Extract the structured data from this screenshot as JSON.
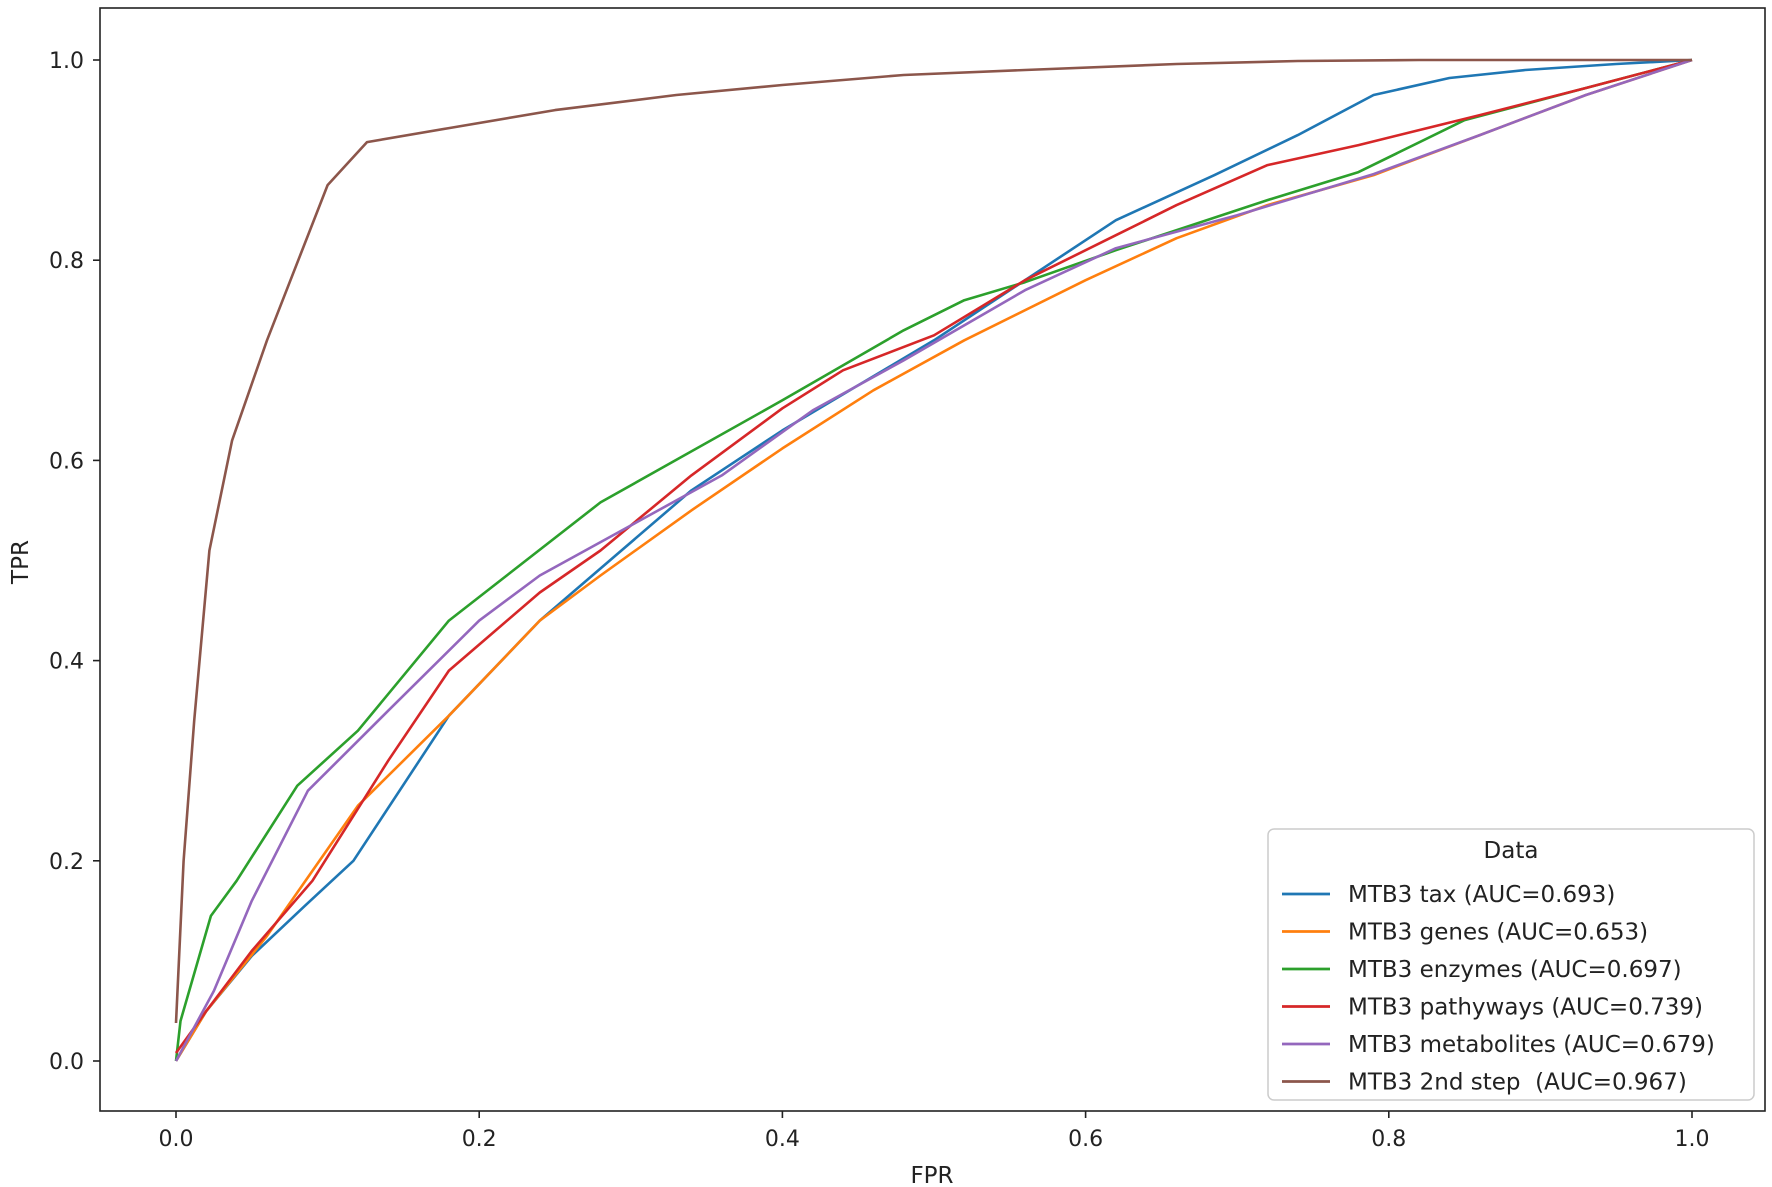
{
  "chart_data": {
    "type": "line",
    "xlabel": "FPR",
    "ylabel": "TPR",
    "xlim": [
      -0.05,
      1.05
    ],
    "ylim": [
      -0.05,
      1.05
    ],
    "xticks": [
      "0.0",
      "0.2",
      "0.4",
      "0.6",
      "0.8",
      "1.0"
    ],
    "yticks": [
      "0.0",
      "0.2",
      "0.4",
      "0.6",
      "0.8",
      "1.0"
    ],
    "grid": false,
    "legend": {
      "title": "Data",
      "position": "bottom-right"
    },
    "series": [
      {
        "name": "MTB3 tax (AUC=0.693)",
        "color": "#1f77b4",
        "x": [
          0,
          0.02,
          0.05,
          0.085,
          0.117,
          0.18,
          0.24,
          0.29,
          0.34,
          0.4,
          0.45,
          0.5,
          0.56,
          0.62,
          0.685,
          0.74,
          0.79,
          0.84,
          0.89,
          0.95,
          1.0
        ],
        "y": [
          0,
          0.05,
          0.105,
          0.155,
          0.2,
          0.345,
          0.44,
          0.505,
          0.57,
          0.63,
          0.675,
          0.72,
          0.78,
          0.84,
          0.885,
          0.925,
          0.965,
          0.982,
          0.99,
          0.996,
          1.0
        ]
      },
      {
        "name": "MTB3 genes (AUC=0.653)",
        "color": "#ff7f0e",
        "x": [
          0,
          0.02,
          0.06,
          0.12,
          0.18,
          0.24,
          0.28,
          0.34,
          0.4,
          0.46,
          0.52,
          0.6,
          0.66,
          0.72,
          0.79,
          0.86,
          0.93,
          1.0
        ],
        "y": [
          0,
          0.05,
          0.125,
          0.255,
          0.345,
          0.44,
          0.485,
          0.55,
          0.612,
          0.67,
          0.72,
          0.78,
          0.822,
          0.855,
          0.885,
          0.925,
          0.965,
          1.0
        ]
      },
      {
        "name": "MTB3 enzymes (AUC=0.697)",
        "color": "#2ca02c",
        "x": [
          0,
          0.003,
          0.023,
          0.04,
          0.08,
          0.12,
          0.18,
          0.28,
          0.4,
          0.48,
          0.52,
          0.56,
          0.62,
          0.72,
          0.78,
          0.85,
          0.93,
          1.0
        ],
        "y": [
          0,
          0.04,
          0.145,
          0.18,
          0.275,
          0.33,
          0.44,
          0.558,
          0.66,
          0.73,
          0.76,
          0.778,
          0.81,
          0.86,
          0.888,
          0.94,
          0.972,
          1.0
        ]
      },
      {
        "name": "MTB3 pathyways (AUC=0.739)",
        "color": "#d62728",
        "x": [
          0,
          0.02,
          0.05,
          0.09,
          0.14,
          0.18,
          0.24,
          0.28,
          0.34,
          0.4,
          0.44,
          0.5,
          0.56,
          0.62,
          0.66,
          0.72,
          0.78,
          0.86,
          0.93,
          1.0
        ],
        "y": [
          0.008,
          0.05,
          0.11,
          0.18,
          0.3,
          0.39,
          0.468,
          0.51,
          0.585,
          0.652,
          0.69,
          0.725,
          0.78,
          0.825,
          0.855,
          0.895,
          0.915,
          0.945,
          0.972,
          1.0
        ]
      },
      {
        "name": "MTB3 metabolites (AUC=0.679)",
        "color": "#9467bd",
        "x": [
          0,
          0.025,
          0.05,
          0.087,
          0.14,
          0.2,
          0.24,
          0.3,
          0.36,
          0.42,
          0.48,
          0.56,
          0.62,
          0.7,
          0.79,
          0.86,
          0.93,
          1.0
        ],
        "y": [
          0,
          0.07,
          0.16,
          0.27,
          0.35,
          0.44,
          0.485,
          0.535,
          0.585,
          0.65,
          0.7,
          0.77,
          0.812,
          0.845,
          0.886,
          0.925,
          0.965,
          1.0
        ]
      },
      {
        "name": "MTB3 2nd step  (AUC=0.967)",
        "color": "#8c564b",
        "x": [
          0,
          0.005,
          0.012,
          0.022,
          0.037,
          0.06,
          0.1,
          0.126,
          0.18,
          0.25,
          0.33,
          0.4,
          0.48,
          0.56,
          0.66,
          0.74,
          0.82,
          0.9,
          1.0
        ],
        "y": [
          0.038,
          0.2,
          0.34,
          0.51,
          0.62,
          0.72,
          0.875,
          0.918,
          0.932,
          0.95,
          0.965,
          0.975,
          0.985,
          0.99,
          0.996,
          0.999,
          1.0,
          1.0,
          1.0
        ]
      }
    ]
  }
}
